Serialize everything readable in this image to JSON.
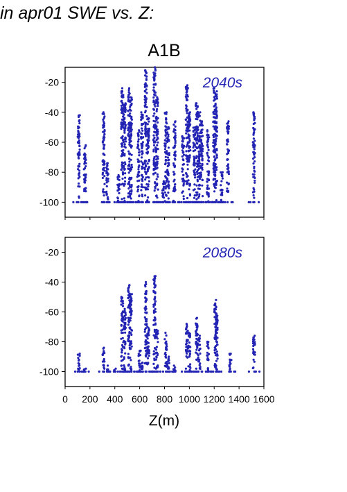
{
  "header_text": "in apr01 SWE vs. Z:",
  "chart_data": {
    "type": "scatter",
    "title": "A1B",
    "xlabel": "Z(m)",
    "xlim": [
      0,
      1600
    ],
    "x_ticks": [
      0,
      200,
      400,
      600,
      800,
      1000,
      1200,
      1400,
      1600
    ],
    "ylim": [
      -110,
      -10
    ],
    "y_ticks": [
      -20,
      -40,
      -60,
      -80,
      -100
    ],
    "point_color": "#2323b4",
    "grid": false,
    "panels": [
      {
        "annotation": "2040s",
        "columns": [
          {
            "x": 110,
            "ymax": -42,
            "ymid": -60
          },
          {
            "x": 160,
            "ymax": -62,
            "ymid": -78
          },
          {
            "x": 310,
            "ymax": -40,
            "ymid": -72
          },
          {
            "x": 340,
            "ymax": -74,
            "ymid": -84
          },
          {
            "x": 430,
            "ymax": -82,
            "ymid": -94
          },
          {
            "x": 460,
            "ymax": -24,
            "ymid": -50
          },
          {
            "x": 480,
            "ymax": -34,
            "ymid": -58
          },
          {
            "x": 515,
            "ymax": -24,
            "ymid": -48
          },
          {
            "x": 530,
            "ymax": -30,
            "ymid": -56
          },
          {
            "x": 590,
            "ymax": -52,
            "ymid": -80
          },
          {
            "x": 620,
            "ymax": -40,
            "ymid": -66
          },
          {
            "x": 650,
            "ymax": -12,
            "ymid": -40
          },
          {
            "x": 670,
            "ymax": -44,
            "ymid": -86
          },
          {
            "x": 720,
            "ymax": -10,
            "ymid": -36
          },
          {
            "x": 740,
            "ymax": -30,
            "ymid": -62
          },
          {
            "x": 790,
            "ymax": -86,
            "ymid": -94
          },
          {
            "x": 810,
            "ymax": -40,
            "ymid": -72
          },
          {
            "x": 830,
            "ymax": -50,
            "ymid": -82
          },
          {
            "x": 880,
            "ymax": -46,
            "ymid": -76
          },
          {
            "x": 950,
            "ymax": -56,
            "ymid": -86
          },
          {
            "x": 980,
            "ymax": -22,
            "ymid": -52
          },
          {
            "x": 1000,
            "ymax": -40,
            "ymid": -70
          },
          {
            "x": 1040,
            "ymax": -50,
            "ymid": -80
          },
          {
            "x": 1060,
            "ymax": -34,
            "ymid": -64
          },
          {
            "x": 1080,
            "ymax": -40,
            "ymid": -74
          },
          {
            "x": 1100,
            "ymax": -46,
            "ymid": -76
          },
          {
            "x": 1150,
            "ymax": -52,
            "ymid": -82
          },
          {
            "x": 1200,
            "ymax": -24,
            "ymid": -46
          },
          {
            "x": 1215,
            "ymax": -26,
            "ymid": -52
          },
          {
            "x": 1260,
            "ymax": -80,
            "ymid": -94
          },
          {
            "x": 1310,
            "ymax": -46,
            "ymid": -78
          },
          {
            "x": 1520,
            "ymax": -40,
            "ymid": -70
          }
        ]
      },
      {
        "annotation": "2080s",
        "columns": [
          {
            "x": 110,
            "ymax": -88,
            "ymid": -98
          },
          {
            "x": 160,
            "ymax": -98,
            "ymid": -100
          },
          {
            "x": 310,
            "ymax": -84,
            "ymid": -96
          },
          {
            "x": 340,
            "ymax": -96,
            "ymid": -100
          },
          {
            "x": 400,
            "ymax": -98,
            "ymid": -100
          },
          {
            "x": 460,
            "ymax": -50,
            "ymid": -74
          },
          {
            "x": 480,
            "ymax": -58,
            "ymid": -80
          },
          {
            "x": 515,
            "ymax": -42,
            "ymid": -64
          },
          {
            "x": 530,
            "ymax": -48,
            "ymid": -72
          },
          {
            "x": 600,
            "ymax": -86,
            "ymid": -96
          },
          {
            "x": 620,
            "ymax": -94,
            "ymid": -98
          },
          {
            "x": 650,
            "ymax": -40,
            "ymid": -66
          },
          {
            "x": 670,
            "ymax": -70,
            "ymid": -88
          },
          {
            "x": 720,
            "ymax": -36,
            "ymid": -60
          },
          {
            "x": 740,
            "ymax": -72,
            "ymid": -90
          },
          {
            "x": 810,
            "ymax": -74,
            "ymid": -90
          },
          {
            "x": 830,
            "ymax": -90,
            "ymid": -98
          },
          {
            "x": 880,
            "ymax": -96,
            "ymid": -100
          },
          {
            "x": 980,
            "ymax": -68,
            "ymid": -86
          },
          {
            "x": 1000,
            "ymax": -74,
            "ymid": -90
          },
          {
            "x": 1060,
            "ymax": -64,
            "ymid": -84
          },
          {
            "x": 1080,
            "ymax": -76,
            "ymid": -92
          },
          {
            "x": 1150,
            "ymax": -80,
            "ymid": -92
          },
          {
            "x": 1210,
            "ymax": -52,
            "ymid": -74
          },
          {
            "x": 1220,
            "ymax": -62,
            "ymid": -82
          },
          {
            "x": 1330,
            "ymax": -88,
            "ymid": -98
          },
          {
            "x": 1520,
            "ymax": -76,
            "ymid": -92
          }
        ]
      }
    ]
  }
}
